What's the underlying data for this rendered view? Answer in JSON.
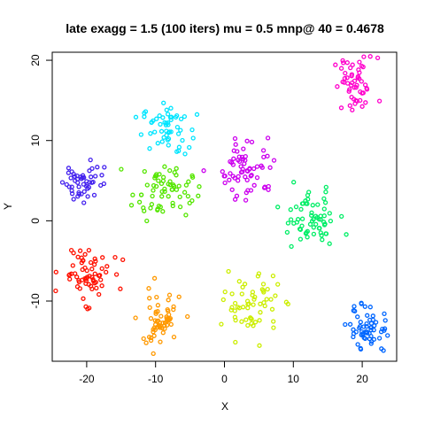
{
  "chart_data": {
    "type": "scatter",
    "title": "late exagg = 1.5 (100 iters) mu = 0.5 mnp@ 40 = 0.4678",
    "xlabel": "X",
    "ylabel": "Y",
    "xlim": [
      -25,
      25
    ],
    "ylim": [
      -17.5,
      21
    ],
    "xticks": [
      -20,
      -10,
      0,
      10,
      20
    ],
    "yticks": [
      -10,
      0,
      10,
      20
    ],
    "grid": false,
    "legend": "none",
    "marker": "open circle",
    "clusters": [
      {
        "color": "#ff00cc",
        "center": [
          19,
          16.8
        ],
        "spread": [
          1.6,
          1.8
        ],
        "n": 55
      },
      {
        "color": "#00e5ff",
        "center": [
          -8.5,
          11.5
        ],
        "spread": [
          1.7,
          1.5
        ],
        "n": 55
      },
      {
        "color": "#cc00ee",
        "center": [
          3.5,
          6.5
        ],
        "spread": [
          2.0,
          1.9
        ],
        "n": 65
      },
      {
        "color": "#4422ee",
        "center": [
          -20.5,
          5.0
        ],
        "spread": [
          1.5,
          1.4
        ],
        "n": 50
      },
      {
        "color": "#55e600",
        "center": [
          -9,
          3.8
        ],
        "spread": [
          2.2,
          1.6
        ],
        "n": 65
      },
      {
        "color": "#00ee66",
        "center": [
          12.5,
          0.2
        ],
        "spread": [
          2.0,
          1.7
        ],
        "n": 65
      },
      {
        "color": "#ff1100",
        "center": [
          -20,
          -6.5
        ],
        "spread": [
          1.8,
          1.7
        ],
        "n": 65
      },
      {
        "color": "#ff9900",
        "center": [
          -9.5,
          -12.5
        ],
        "spread": [
          1.6,
          1.8
        ],
        "n": 60
      },
      {
        "color": "#ccee00",
        "center": [
          4,
          -10.5
        ],
        "spread": [
          2.0,
          1.9
        ],
        "n": 60
      },
      {
        "color": "#0066ff",
        "center": [
          21,
          -13.5
        ],
        "spread": [
          1.5,
          1.5
        ],
        "n": 60
      }
    ]
  }
}
